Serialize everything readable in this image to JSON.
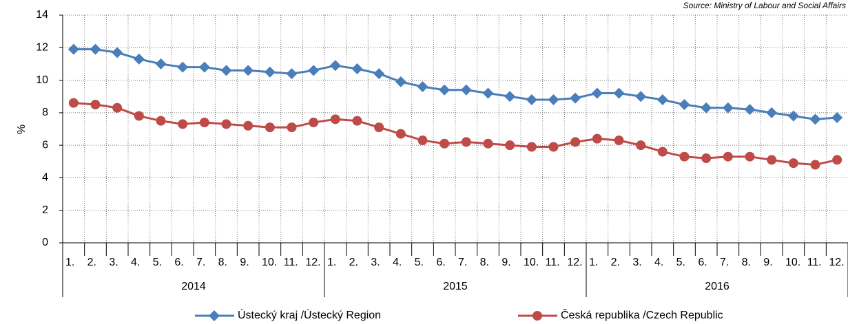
{
  "chart_data": {
    "type": "line",
    "annotation": "Source: Ministry of Labour and Social Affairs",
    "y_label": "%",
    "categories": [
      "1.",
      "2.",
      "3.",
      "4.",
      "5.",
      "6.",
      "7.",
      "8.",
      "9.",
      "10.",
      "11.",
      "12.",
      "1.",
      "2.",
      "3.",
      "4.",
      "5.",
      "6.",
      "7.",
      "8.",
      "9.",
      "10.",
      "11.",
      "12.",
      "1.",
      "2.",
      "3.",
      "4.",
      "5.",
      "6.",
      "7.",
      "8.",
      "9.",
      "10.",
      "11.",
      "12."
    ],
    "years": [
      "2014",
      "2015",
      "2016"
    ],
    "series": [
      {
        "name": "Ústecký kraj /Ústecký Region",
        "color": "#4a7ebb",
        "marker": "diamond",
        "values": [
          11.9,
          11.9,
          11.7,
          11.3,
          11.0,
          10.8,
          10.8,
          10.6,
          10.6,
          10.5,
          10.4,
          10.6,
          10.9,
          10.7,
          10.4,
          9.9,
          9.6,
          9.4,
          9.4,
          9.2,
          9.0,
          8.8,
          8.8,
          8.9,
          9.2,
          9.2,
          9.0,
          8.8,
          8.5,
          8.3,
          8.3,
          8.2,
          8.0,
          7.8,
          7.6,
          7.7
        ]
      },
      {
        "name": "Česká republika /Czech Republic",
        "color": "#be4b48",
        "marker": "circle",
        "values": [
          8.6,
          8.5,
          8.3,
          7.8,
          7.5,
          7.3,
          7.4,
          7.3,
          7.2,
          7.1,
          7.1,
          7.4,
          7.6,
          7.5,
          7.1,
          6.7,
          6.3,
          6.1,
          6.2,
          6.1,
          6.0,
          5.9,
          5.9,
          6.2,
          6.4,
          6.3,
          6.0,
          5.6,
          5.3,
          5.2,
          5.3,
          5.3,
          5.1,
          4.9,
          4.8,
          5.1
        ]
      }
    ],
    "ylim": [
      0,
      14
    ],
    "yticks": [
      0,
      2,
      4,
      6,
      8,
      10,
      12,
      14
    ],
    "grid": true
  }
}
